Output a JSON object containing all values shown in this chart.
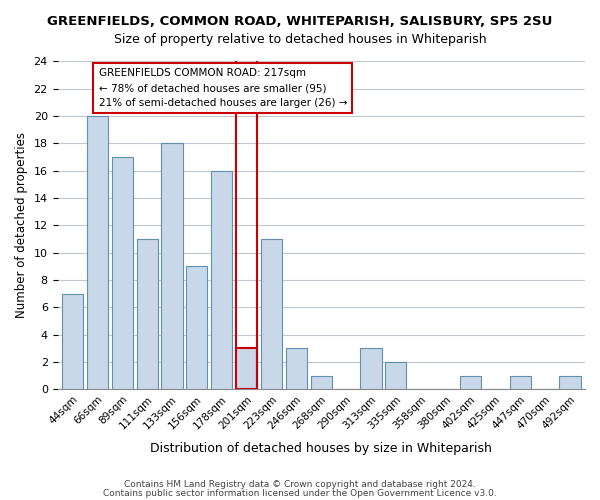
{
  "title": "GREENFIELDS, COMMON ROAD, WHITEPARISH, SALISBURY, SP5 2SU",
  "subtitle": "Size of property relative to detached houses in Whiteparish",
  "xlabel": "Distribution of detached houses by size in Whiteparish",
  "ylabel": "Number of detached properties",
  "bar_labels": [
    "44sqm",
    "66sqm",
    "89sqm",
    "111sqm",
    "133sqm",
    "156sqm",
    "178sqm",
    "201sqm",
    "223sqm",
    "246sqm",
    "268sqm",
    "290sqm",
    "313sqm",
    "335sqm",
    "358sqm",
    "380sqm",
    "402sqm",
    "425sqm",
    "447sqm",
    "470sqm",
    "492sqm"
  ],
  "bar_values": [
    7,
    20,
    17,
    11,
    18,
    9,
    16,
    3,
    11,
    3,
    1,
    0,
    3,
    2,
    0,
    0,
    1,
    0,
    1,
    0,
    1
  ],
  "bar_color": "#c8d8e8",
  "bar_edge_color": "#6090b0",
  "highlight_bar_index": 7,
  "highlight_edge_color": "#cc0000",
  "ylim": [
    0,
    24
  ],
  "yticks": [
    0,
    2,
    4,
    6,
    8,
    10,
    12,
    14,
    16,
    18,
    20,
    22,
    24
  ],
  "annotation_title": "GREENFIELDS COMMON ROAD: 217sqm",
  "annotation_line1": "← 78% of detached houses are smaller (95)",
  "annotation_line2": "21% of semi-detached houses are larger (26) →",
  "footer1": "Contains HM Land Registry data © Crown copyright and database right 2024.",
  "footer2": "Contains public sector information licensed under the Open Government Licence v3.0.",
  "background_color": "#ffffff",
  "grid_color": "#c0c8d0"
}
